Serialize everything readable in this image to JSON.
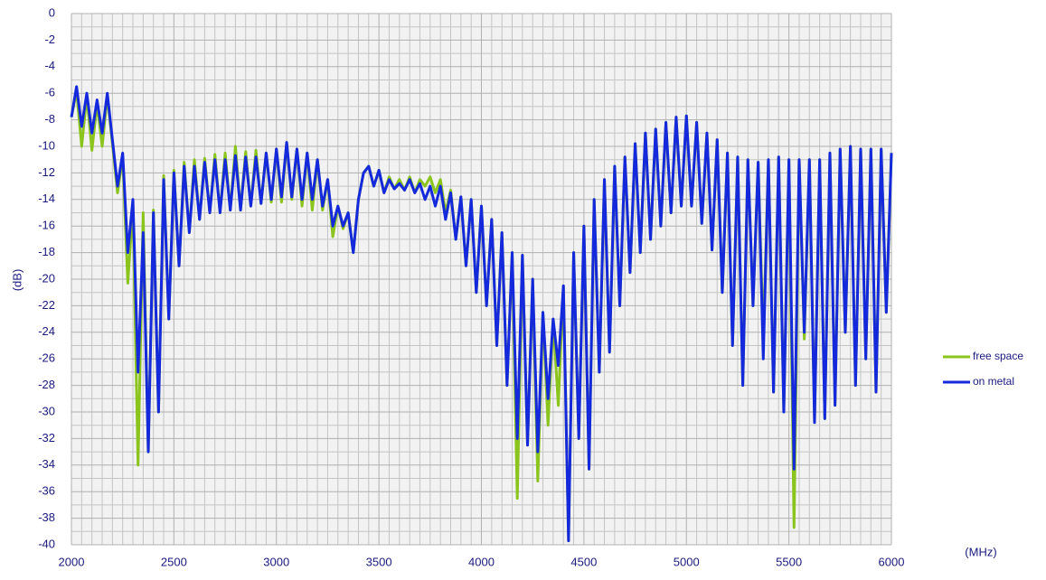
{
  "chart_data": {
    "type": "line",
    "y_label": "(dB)",
    "x_label": "(MHz)",
    "xlim": [
      2000,
      6000
    ],
    "xticks": [
      2000,
      2500,
      3000,
      3500,
      4000,
      4500,
      5000,
      5500,
      6000
    ],
    "xminor": [
      2050,
      2100,
      2150,
      2200,
      2250,
      2300,
      2350,
      2400,
      2450,
      2550,
      2600,
      2650,
      2700,
      2750,
      2800,
      2850,
      2900,
      2950,
      3050,
      3100,
      3150,
      3200,
      3250,
      3300,
      3350,
      3400,
      3450,
      3550,
      3600,
      3650,
      3700,
      3750,
      3800,
      3850,
      3900,
      3950,
      4050,
      4100,
      4150,
      4200,
      4250,
      4300,
      4350,
      4400,
      4450,
      4550,
      4600,
      4650,
      4700,
      4750,
      4800,
      4850,
      4900,
      4950,
      5050,
      5100,
      5150,
      5200,
      5250,
      5300,
      5350,
      5400,
      5450,
      5550,
      5600,
      5650,
      5700,
      5750,
      5800,
      5850,
      5900,
      5950
    ],
    "ylim": [
      -40,
      0
    ],
    "yticks": [
      0,
      -2,
      -4,
      -6,
      -8,
      -10,
      -12,
      -14,
      -16,
      -18,
      -20,
      -22,
      -24,
      -26,
      -28,
      -30,
      -32,
      -34,
      -36,
      -38,
      -40
    ],
    "yminor": [
      -1,
      -3,
      -5,
      -7,
      -9,
      -11,
      -13,
      -15,
      -17,
      -19,
      -21,
      -23,
      -25,
      -27,
      -29,
      -31,
      -33,
      -35,
      -37,
      -39
    ],
    "grid": true,
    "legend": "right",
    "x": [
      2000,
      2025,
      2050,
      2075,
      2100,
      2125,
      2150,
      2175,
      2200,
      2225,
      2250,
      2275,
      2300,
      2325,
      2350,
      2375,
      2400,
      2425,
      2450,
      2475,
      2500,
      2525,
      2550,
      2575,
      2600,
      2625,
      2650,
      2675,
      2700,
      2725,
      2750,
      2775,
      2800,
      2825,
      2850,
      2875,
      2900,
      2925,
      2950,
      2975,
      3000,
      3025,
      3050,
      3075,
      3100,
      3125,
      3150,
      3175,
      3200,
      3225,
      3250,
      3275,
      3300,
      3325,
      3350,
      3375,
      3400,
      3425,
      3450,
      3475,
      3500,
      3525,
      3550,
      3575,
      3600,
      3625,
      3650,
      3675,
      3700,
      3725,
      3750,
      3775,
      3800,
      3825,
      3850,
      3875,
      3900,
      3925,
      3950,
      3975,
      4000,
      4025,
      4050,
      4075,
      4100,
      4125,
      4150,
      4175,
      4200,
      4225,
      4250,
      4275,
      4300,
      4325,
      4350,
      4375,
      4400,
      4425,
      4450,
      4475,
      4500,
      4525,
      4550,
      4575,
      4600,
      4625,
      4650,
      4675,
      4700,
      4725,
      4750,
      4775,
      4800,
      4825,
      4850,
      4875,
      4900,
      4925,
      4950,
      4975,
      5000,
      5025,
      5050,
      5075,
      5100,
      5125,
      5150,
      5175,
      5200,
      5225,
      5250,
      5275,
      5300,
      5325,
      5350,
      5375,
      5400,
      5425,
      5450,
      5475,
      5500,
      5525,
      5550,
      5575,
      5600,
      5625,
      5650,
      5675,
      5700,
      5725,
      5750,
      5775,
      5800,
      5825,
      5850,
      5875,
      5900,
      5925,
      5950,
      5975,
      6000
    ],
    "series": [
      {
        "name": "free space",
        "color": "#8cc41e",
        "values": [
          -7.8,
          -5.8,
          -10,
          -6.2,
          -10.3,
          -6.8,
          -10,
          -6.2,
          -9.8,
          -13.5,
          -10.8,
          -20.3,
          -14.5,
          -34,
          -15,
          -33,
          -14.8,
          -30,
          -12.2,
          -23,
          -11.8,
          -19,
          -11.2,
          -16.5,
          -11,
          -15.5,
          -10.9,
          -15,
          -10.6,
          -15,
          -10.5,
          -14.8,
          -10,
          -14.8,
          -10.4,
          -14.5,
          -10.3,
          -14.3,
          -10.5,
          -14.2,
          -10.2,
          -14.2,
          -9.7,
          -14,
          -10.2,
          -14.5,
          -10.5,
          -14.8,
          -11,
          -14.8,
          -12.5,
          -16.8,
          -14.5,
          -16.2,
          -15,
          -18,
          -14,
          -12,
          -11.5,
          -13,
          -11.8,
          -13.5,
          -12.3,
          -13.2,
          -12.5,
          -13.3,
          -12.3,
          -13.5,
          -12.5,
          -13,
          -12.3,
          -13.5,
          -12.5,
          -15,
          -13.3,
          -17,
          -13.8,
          -19,
          -14,
          -21,
          -14.5,
          -22,
          -15.5,
          -25,
          -16.5,
          -28,
          -18,
          -36.5,
          -18.2,
          -32.5,
          -20,
          -35.2,
          -22.5,
          -31,
          -23,
          -29.5,
          -20.5,
          -39.7,
          -18,
          -32,
          -16,
          -34.3,
          -14,
          -27,
          -12.5,
          -25.5,
          -11.5,
          -22,
          -10.8,
          -19.5,
          -9.8,
          -18,
          -9,
          -17,
          -8.7,
          -16,
          -8.2,
          -15,
          -7.8,
          -14.5,
          -7.7,
          -14.5,
          -8.2,
          -15.8,
          -9,
          -17.8,
          -9.5,
          -21,
          -10.5,
          -25,
          -10.8,
          -28,
          -11,
          -22,
          -11.2,
          -24.5,
          -11,
          -28.5,
          -10.8,
          -30,
          -11,
          -38.7,
          -11,
          -24.5,
          -11,
          -30.8,
          -11,
          -30.5,
          -10.5,
          -29.5,
          -10.2,
          -24,
          -10,
          -28,
          -10.2,
          -26,
          -10.2,
          -28.5,
          -10.2,
          -22.5,
          -10.5
        ]
      },
      {
        "name": "on metal",
        "color": "#1428dc",
        "values": [
          -7.8,
          -5.5,
          -8.5,
          -6,
          -9,
          -6.5,
          -9,
          -6,
          -9.5,
          -13,
          -10.5,
          -18,
          -14,
          -27,
          -16.5,
          -33,
          -15,
          -30,
          -12.5,
          -23,
          -12,
          -19,
          -11.5,
          -16.5,
          -11.5,
          -15.5,
          -11.2,
          -15,
          -11,
          -15,
          -11,
          -14.8,
          -10.7,
          -14.8,
          -10.8,
          -14.5,
          -10.8,
          -14.3,
          -10.5,
          -14,
          -10.2,
          -13.8,
          -9.7,
          -13.8,
          -10.2,
          -14,
          -10.5,
          -14,
          -11,
          -14.5,
          -12.5,
          -16,
          -14.5,
          -16,
          -15,
          -18,
          -14,
          -12,
          -11.5,
          -13,
          -11.8,
          -13.5,
          -12.5,
          -13.2,
          -12.8,
          -13.3,
          -12.5,
          -13.5,
          -12.8,
          -14,
          -13,
          -14.5,
          -13,
          -15.5,
          -13.5,
          -17,
          -13.8,
          -19,
          -14,
          -21,
          -14.5,
          -22,
          -15.5,
          -25,
          -16.5,
          -28,
          -18,
          -32,
          -18.2,
          -32.5,
          -20,
          -33,
          -22.5,
          -29,
          -23,
          -26.5,
          -20.5,
          -39.7,
          -18,
          -32,
          -16,
          -34.3,
          -14,
          -27,
          -12.5,
          -25.5,
          -11.5,
          -22,
          -10.8,
          -19.5,
          -9.8,
          -18,
          -9,
          -17,
          -8.7,
          -16,
          -8.2,
          -15,
          -7.8,
          -14.5,
          -7.7,
          -14.5,
          -8.2,
          -15.8,
          -9,
          -17.8,
          -9.5,
          -21,
          -10.5,
          -25,
          -10.8,
          -28,
          -11,
          -22,
          -11.2,
          -26,
          -11,
          -28.5,
          -10.8,
          -30,
          -11,
          -34.3,
          -11,
          -24,
          -11,
          -30.8,
          -11,
          -30.5,
          -10.5,
          -29.5,
          -10.2,
          -24,
          -10,
          -28,
          -10.2,
          -26,
          -10.2,
          -28.5,
          -10.2,
          -22.5,
          -10.5
        ]
      }
    ]
  }
}
